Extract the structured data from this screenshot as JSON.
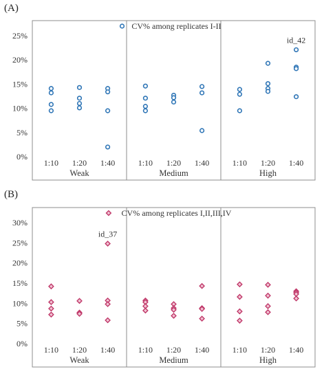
{
  "chart_data": [
    {
      "panel_label": "(A)",
      "type": "scatter",
      "legend": "CV% among replicates I-II",
      "legend_position": "top-center",
      "marker": "circle",
      "color": "#2e75b6",
      "groups": [
        "Weak",
        "Medium",
        "High"
      ],
      "dilutions": [
        "1:10",
        "1:20",
        "1:40"
      ],
      "y_ticks": [
        "0%",
        "5%",
        "10%",
        "15%",
        "20%",
        "25%"
      ],
      "ylim": [
        0,
        25
      ],
      "grid": false,
      "annotation": {
        "text": "id_42",
        "group": "High",
        "dilution": "1:40",
        "y": 22.1
      },
      "points": [
        {
          "group": "Weak",
          "dilution": "1:10",
          "values": [
            14.1,
            13.2,
            10.8,
            9.5
          ]
        },
        {
          "group": "Weak",
          "dilution": "1:20",
          "values": [
            14.3,
            12.1,
            11.0,
            10.1
          ]
        },
        {
          "group": "Weak",
          "dilution": "1:40",
          "values": [
            14.1,
            13.4,
            9.5,
            2.0
          ]
        },
        {
          "group": "Medium",
          "dilution": "1:10",
          "values": [
            14.6,
            12.1,
            10.4,
            9.5
          ]
        },
        {
          "group": "Medium",
          "dilution": "1:20",
          "values": [
            12.7,
            12.2,
            11.3
          ]
        },
        {
          "group": "Medium",
          "dilution": "1:40",
          "values": [
            14.5,
            13.2,
            5.4
          ]
        },
        {
          "group": "High",
          "dilution": "1:10",
          "values": [
            13.9,
            12.9,
            9.5
          ]
        },
        {
          "group": "High",
          "dilution": "1:20",
          "values": [
            19.3,
            15.1,
            14.1,
            13.5
          ]
        },
        {
          "group": "High",
          "dilution": "1:40",
          "values": [
            22.1,
            18.5,
            18.2,
            12.4
          ]
        }
      ]
    },
    {
      "panel_label": "(B)",
      "type": "scatter",
      "legend": "CV% among replicates I,II,III,IV",
      "legend_position": "top-center",
      "marker": "diamond",
      "color": "#c0396a",
      "groups": [
        "Weak",
        "Medium",
        "High"
      ],
      "dilutions": [
        "1:10",
        "1:20",
        "1:40"
      ],
      "y_ticks": [
        "0%",
        "5%",
        "10%",
        "15%",
        "20%",
        "25%",
        "30%"
      ],
      "ylim": [
        0,
        30
      ],
      "grid": false,
      "annotation": {
        "text": "id_37",
        "group": "Weak",
        "dilution": "1:40",
        "y": 24.8
      },
      "points": [
        {
          "group": "Weak",
          "dilution": "1:10",
          "values": [
            14.2,
            10.3,
            8.7,
            7.2
          ]
        },
        {
          "group": "Weak",
          "dilution": "1:20",
          "values": [
            10.6,
            7.7,
            7.4
          ]
        },
        {
          "group": "Weak",
          "dilution": "1:40",
          "values": [
            24.8,
            10.7,
            9.8,
            5.8
          ]
        },
        {
          "group": "Medium",
          "dilution": "1:10",
          "values": [
            10.7,
            10.3,
            9.3,
            8.2
          ]
        },
        {
          "group": "Medium",
          "dilution": "1:20",
          "values": [
            9.8,
            8.8,
            8.4,
            6.9
          ]
        },
        {
          "group": "Medium",
          "dilution": "1:40",
          "values": [
            14.3,
            8.8,
            8.6,
            6.2
          ]
        },
        {
          "group": "High",
          "dilution": "1:10",
          "values": [
            14.7,
            11.6,
            8.0,
            5.7
          ]
        },
        {
          "group": "High",
          "dilution": "1:20",
          "values": [
            14.6,
            11.9,
            9.3,
            7.8
          ]
        },
        {
          "group": "High",
          "dilution": "1:40",
          "values": [
            13.0,
            12.7,
            12.3,
            11.2
          ]
        }
      ]
    }
  ]
}
